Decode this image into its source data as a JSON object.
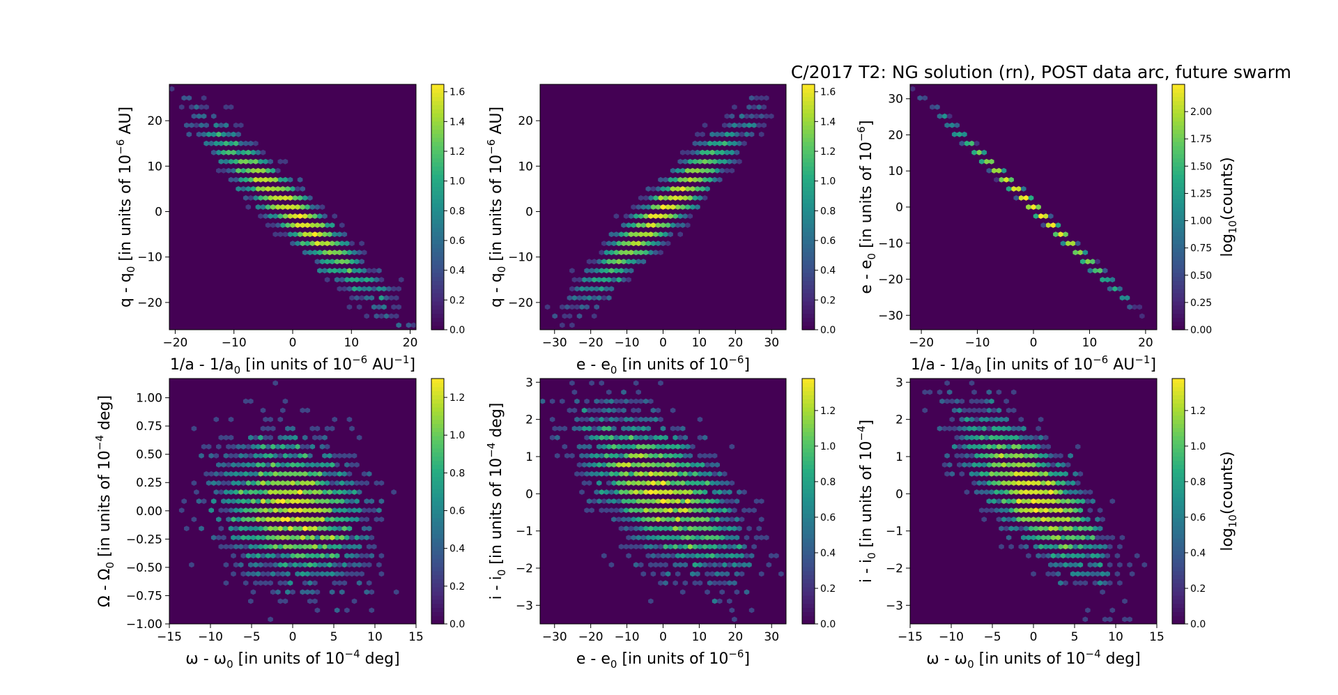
{
  "figure": {
    "title": "C/2017 T2: NG solution (rn), POST data arc,  future swarm"
  },
  "colormap": [
    "#440154",
    "#472c7a",
    "#3b518b",
    "#2c718e",
    "#21908d",
    "#27ad81",
    "#5cc863",
    "#aadc32",
    "#fde725"
  ],
  "chart_data": [
    {
      "type": "heatmap",
      "subtype": "hexbin",
      "xlabel_parts": [
        "1/a - 1/a",
        "0",
        " [in units of 10",
        "−6",
        " AU",
        "−1",
        "]"
      ],
      "ylabel_parts": [
        "q - q",
        "0",
        " [in units of 10",
        "−6",
        " AU]"
      ],
      "xlim": [
        -21,
        21
      ],
      "ylim": [
        -26,
        28
      ],
      "xticks": [
        -20,
        -10,
        0,
        10,
        20
      ],
      "xtick_labels": [
        "−20",
        "−10",
        "0",
        "10",
        "20"
      ],
      "yticks": [
        -20,
        -10,
        0,
        10,
        20
      ],
      "ytick_labels": [
        "−20",
        "−10",
        "0",
        "10",
        "20"
      ],
      "distribution": {
        "mx": 0,
        "my": 0,
        "sx": 6.5,
        "sy": 8.5,
        "rho": -0.95,
        "count": 3000,
        "seed": 11
      },
      "colorbar": {
        "min": 0,
        "max": 1.65,
        "ticks": [
          0,
          0.2,
          0.4,
          0.6,
          0.8,
          1.0,
          1.2,
          1.4,
          1.6
        ],
        "tick_labels": [
          "0.0",
          "0.2",
          "0.4",
          "0.6",
          "0.8",
          "1.0",
          "1.2",
          "1.4",
          "1.6"
        ],
        "label_parts": []
      }
    },
    {
      "type": "heatmap",
      "subtype": "hexbin",
      "xlabel_parts": [
        "e - e",
        "0",
        " [in units of 10",
        "−6",
        "]"
      ],
      "ylabel_parts": [
        "q - q",
        "0",
        " [in units of 10",
        "−6",
        " AU]"
      ],
      "xlim": [
        -34,
        34
      ],
      "ylim": [
        -26,
        28
      ],
      "xticks": [
        -30,
        -20,
        -10,
        0,
        10,
        20,
        30
      ],
      "xtick_labels": [
        "−30",
        "−20",
        "−10",
        "0",
        "10",
        "20",
        "30"
      ],
      "yticks": [
        -20,
        -10,
        0,
        10,
        20
      ],
      "ytick_labels": [
        "−20",
        "−10",
        "0",
        "10",
        "20"
      ],
      "distribution": {
        "mx": 0,
        "my": 0,
        "sx": 10,
        "sy": 8.5,
        "rho": 0.95,
        "count": 3000,
        "seed": 23
      },
      "colorbar": {
        "min": 0,
        "max": 1.65,
        "ticks": [
          0,
          0.2,
          0.4,
          0.6,
          0.8,
          1.0,
          1.2,
          1.4,
          1.6
        ],
        "tick_labels": [
          "0.0",
          "0.2",
          "0.4",
          "0.6",
          "0.8",
          "1.0",
          "1.2",
          "1.4",
          "1.6"
        ],
        "label_parts": []
      }
    },
    {
      "type": "heatmap",
      "subtype": "hexbin",
      "xlabel_parts": [
        "1/a - 1/a",
        "0",
        " [in units of 10",
        "−6",
        " AU",
        "−1",
        "]"
      ],
      "ylabel_parts": [
        "e - e",
        "0",
        " [in units of 10",
        "−6",
        "]"
      ],
      "xlim": [
        -22,
        22
      ],
      "ylim": [
        -34,
        34
      ],
      "xticks": [
        -20,
        -10,
        0,
        10,
        20
      ],
      "xtick_labels": [
        "−20",
        "−10",
        "0",
        "10",
        "20"
      ],
      "yticks": [
        -30,
        -20,
        -10,
        0,
        10,
        20,
        30
      ],
      "ytick_labels": [
        "−30",
        "−20",
        "−10",
        "0",
        "10",
        "20",
        "30"
      ],
      "distribution": {
        "mx": 0,
        "my": 0,
        "sx": 6.5,
        "sy": 10,
        "rho": -0.9995,
        "count": 3000,
        "seed": 37
      },
      "colorbar": {
        "min": 0,
        "max": 2.25,
        "ticks": [
          0,
          0.25,
          0.5,
          0.75,
          1.0,
          1.25,
          1.5,
          1.75,
          2.0
        ],
        "tick_labels": [
          "0.00",
          "0.25",
          "0.50",
          "0.75",
          "1.00",
          "1.25",
          "1.50",
          "1.75",
          "2.00"
        ],
        "label_parts": [
          "log",
          "10",
          "(counts)"
        ]
      }
    },
    {
      "type": "heatmap",
      "subtype": "hexbin",
      "xlabel_parts": [
        "ω - ω",
        "0",
        " [in units of 10",
        "−4",
        " deg]"
      ],
      "ylabel_parts": [
        "Ω - Ω",
        "0",
        " [in units of 10",
        "−4",
        " deg]"
      ],
      "xlim": [
        -15,
        15
      ],
      "ylim": [
        -1.0,
        1.17
      ],
      "xticks": [
        -15,
        -10,
        -5,
        0,
        5,
        10,
        15
      ],
      "xtick_labels": [
        "−15",
        "−10",
        "−5",
        "0",
        "5",
        "10",
        "15"
      ],
      "yticks": [
        -1.0,
        -0.75,
        -0.5,
        -0.25,
        0,
        0.25,
        0.5,
        0.75,
        1.0
      ],
      "ytick_labels": [
        "−1.00",
        "−0.75",
        "−0.50",
        "−0.25",
        "0.00",
        "0.25",
        "0.50",
        "0.75",
        "1.00"
      ],
      "distribution": {
        "mx": 0,
        "my": 0,
        "sx": 4,
        "sy": 0.3,
        "rho": -0.2,
        "count": 3000,
        "seed": 51
      },
      "colorbar": {
        "min": 0,
        "max": 1.3,
        "ticks": [
          0,
          0.2,
          0.4,
          0.6,
          0.8,
          1.0,
          1.2
        ],
        "tick_labels": [
          "0.0",
          "0.2",
          "0.4",
          "0.6",
          "0.8",
          "1.0",
          "1.2"
        ],
        "label_parts": []
      }
    },
    {
      "type": "heatmap",
      "subtype": "hexbin",
      "xlabel_parts": [
        "e - e",
        "0",
        " [in units of 10",
        "−6",
        "]"
      ],
      "ylabel_parts": [
        "i - i",
        "0",
        " [in units of 10",
        "−4",
        " deg]"
      ],
      "xlim": [
        -34,
        34
      ],
      "ylim": [
        -3.5,
        3.1
      ],
      "xticks": [
        -30,
        -20,
        -10,
        0,
        10,
        20,
        30
      ],
      "xtick_labels": [
        "−30",
        "−20",
        "−10",
        "0",
        "10",
        "20",
        "30"
      ],
      "yticks": [
        -3,
        -2,
        -1,
        0,
        1,
        2,
        3
      ],
      "ytick_labels": [
        "−3",
        "−2",
        "−1",
        "0",
        "1",
        "2",
        "3"
      ],
      "distribution": {
        "mx": 0,
        "my": 0,
        "sx": 10,
        "sy": 1.0,
        "rho": -0.6,
        "count": 3000,
        "seed": 67
      },
      "colorbar": {
        "min": 0,
        "max": 1.38,
        "ticks": [
          0,
          0.2,
          0.4,
          0.6,
          0.8,
          1.0,
          1.2
        ],
        "tick_labels": [
          "0.0",
          "0.2",
          "0.4",
          "0.6",
          "0.8",
          "1.0",
          "1.2"
        ],
        "label_parts": []
      }
    },
    {
      "type": "heatmap",
      "subtype": "hexbin",
      "xlabel_parts": [
        "ω - ω",
        "0",
        " [in units of 10",
        "−4",
        " deg]"
      ],
      "ylabel_parts": [
        "i - i",
        "0",
        " [in units of 10",
        "−4",
        "]"
      ],
      "xlim": [
        -15,
        15
      ],
      "ylim": [
        -3.5,
        3.1
      ],
      "xticks": [
        -15,
        -10,
        -5,
        0,
        5,
        10,
        15
      ],
      "xtick_labels": [
        "−15",
        "−10",
        "−5",
        "0",
        "5",
        "10",
        "15"
      ],
      "yticks": [
        -3,
        -2,
        -1,
        0,
        1,
        2,
        3
      ],
      "ytick_labels": [
        "−3",
        "−2",
        "−1",
        "0",
        "1",
        "2",
        "3"
      ],
      "distribution": {
        "mx": 0,
        "my": 0,
        "sx": 4,
        "sy": 1.0,
        "rho": -0.75,
        "count": 3000,
        "seed": 83
      },
      "colorbar": {
        "min": 0,
        "max": 1.38,
        "ticks": [
          0,
          0.2,
          0.4,
          0.6,
          0.8,
          1.0,
          1.2
        ],
        "tick_labels": [
          "0.0",
          "0.2",
          "0.4",
          "0.6",
          "0.8",
          "1.0",
          "1.2"
        ],
        "label_parts": [
          "log",
          "10",
          "(counts)"
        ]
      }
    }
  ]
}
